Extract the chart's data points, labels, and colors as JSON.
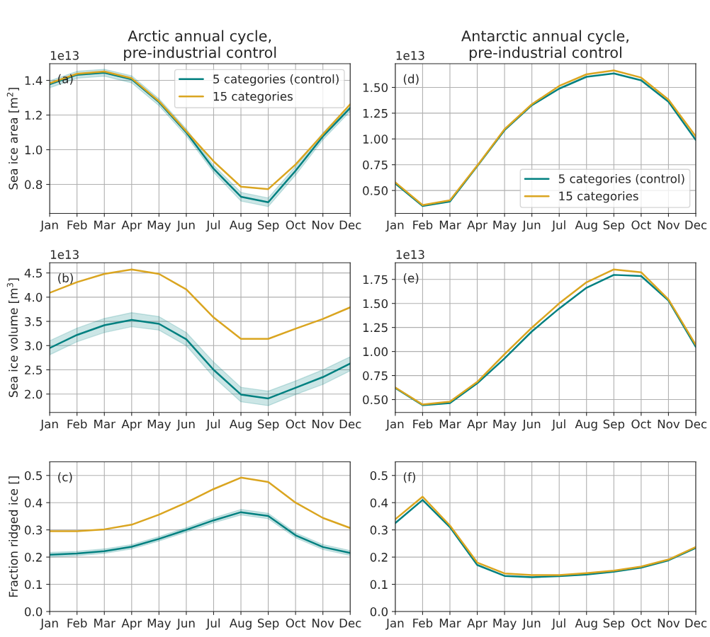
{
  "chart_data": [
    {
      "type": "line",
      "title": "Arctic annual cycle,\npre-industrial control",
      "ylabel": "Sea ice area [m$^{2}$]",
      "annotations": [
        "(a)",
        "1e13"
      ],
      "categories": [
        "Jan",
        "Feb",
        "Mar",
        "Apr",
        "May",
        "Jun",
        "Jul",
        "Aug",
        "Sep",
        "Oct",
        "Nov",
        "Dec"
      ],
      "series": [
        {
          "name": "5 categories (control)",
          "color": "#008080",
          "values": [
            1.377,
            1.432,
            1.444,
            1.406,
            1.274,
            1.1,
            0.89,
            0.729,
            0.697,
            0.879,
            1.077,
            1.241
          ],
          "lower": [
            1.357,
            1.412,
            1.424,
            1.386,
            1.254,
            1.08,
            0.87,
            0.704,
            0.672,
            0.854,
            1.057,
            1.221
          ],
          "upper": [
            1.397,
            1.452,
            1.464,
            1.426,
            1.294,
            1.12,
            0.91,
            0.754,
            0.722,
            0.904,
            1.097,
            1.261
          ]
        },
        {
          "name": "15 categories",
          "color": "#daa520",
          "values": [
            1.384,
            1.438,
            1.451,
            1.412,
            1.28,
            1.107,
            0.933,
            0.787,
            0.773,
            0.915,
            1.089,
            1.262
          ]
        }
      ],
      "ylim": [
        0.633,
        1.496
      ],
      "yticks": [
        0.8,
        {
          "value": 1.0,
          "label": "1.0"
        },
        1.2,
        1.4
      ],
      "grid": true,
      "legend": "top right"
    },
    {
      "type": "line",
      "title": "Antarctic annual cycle,\npre-industrial control",
      "annotations": [
        "(d)",
        "1e13"
      ],
      "categories": [
        "Jan",
        "Feb",
        "Mar",
        "Apr",
        "May",
        "Jun",
        "Jul",
        "Aug",
        "Sep",
        "Oct",
        "Nov",
        "Dec"
      ],
      "series": [
        {
          "name": "5 categories (control)",
          "color": "#008080",
          "values": [
            0.567,
            0.349,
            0.393,
            0.736,
            1.085,
            1.327,
            1.488,
            1.603,
            1.635,
            1.569,
            1.361,
            0.99
          ]
        },
        {
          "name": "15 categories",
          "color": "#daa520",
          "values": [
            0.579,
            0.359,
            0.405,
            0.742,
            1.095,
            1.337,
            1.514,
            1.627,
            1.665,
            1.595,
            1.381,
            1.024
          ]
        }
      ],
      "ylim": [
        0.278,
        1.73
      ],
      "yticks": [
        {
          "value": 0.5,
          "label": "0.50"
        },
        {
          "value": 0.75,
          "label": "0.75"
        },
        {
          "value": 1.0,
          "label": "1.00"
        },
        {
          "value": 1.25,
          "label": "1.25"
        },
        {
          "value": 1.5,
          "label": "1.50"
        }
      ],
      "grid": true,
      "legend": "bottom right"
    },
    {
      "type": "line",
      "ylabel": "Sea ice volume [m$^{3}$]",
      "annotations": [
        "(b)",
        "1e13"
      ],
      "categories": [
        "Jan",
        "Feb",
        "Mar",
        "Apr",
        "May",
        "Jun",
        "Jul",
        "Aug",
        "Sep",
        "Oct",
        "Nov",
        "Dec"
      ],
      "series": [
        {
          "color": "#008080",
          "values": [
            2.95,
            3.22,
            3.42,
            3.53,
            3.45,
            3.13,
            2.5,
            1.99,
            1.91,
            2.13,
            2.35,
            2.63
          ],
          "lower": [
            2.81,
            3.08,
            3.27,
            3.39,
            3.32,
            3.0,
            2.35,
            1.84,
            1.76,
            1.99,
            2.2,
            2.48
          ],
          "upper": [
            3.1,
            3.36,
            3.56,
            3.68,
            3.6,
            3.27,
            2.66,
            2.14,
            2.06,
            2.27,
            2.5,
            2.77
          ]
        },
        {
          "color": "#daa520",
          "values": [
            4.09,
            4.31,
            4.48,
            4.57,
            4.48,
            4.16,
            3.58,
            3.14,
            3.14,
            3.35,
            3.55,
            3.79
          ]
        }
      ],
      "ylim": [
        1.62,
        4.71
      ],
      "yticks": [
        {
          "value": 2.0,
          "label": "2.0"
        },
        2.5,
        {
          "value": 3.0,
          "label": "3.0"
        },
        3.5,
        {
          "value": 4.0,
          "label": "4.0"
        },
        4.5
      ],
      "grid": true
    },
    {
      "type": "line",
      "annotations": [
        "(e)",
        "1e13"
      ],
      "categories": [
        "Jan",
        "Feb",
        "Mar",
        "Apr",
        "May",
        "Jun",
        "Jul",
        "Aug",
        "Sep",
        "Oct",
        "Nov",
        "Dec"
      ],
      "series": [
        {
          "color": "#008080",
          "values": [
            0.621,
            0.442,
            0.463,
            0.669,
            0.928,
            1.209,
            1.447,
            1.663,
            1.797,
            1.785,
            1.53,
            1.048
          ]
        },
        {
          "color": "#daa520",
          "values": [
            0.625,
            0.448,
            0.478,
            0.684,
            0.972,
            1.248,
            1.501,
            1.72,
            1.854,
            1.824,
            1.541,
            1.069
          ]
        }
      ],
      "ylim": [
        0.366,
        1.923
      ],
      "yticks": [
        {
          "value": 0.5,
          "label": "0.50"
        },
        {
          "value": 0.75,
          "label": "0.75"
        },
        {
          "value": 1.0,
          "label": "1.00"
        },
        {
          "value": 1.25,
          "label": "1.25"
        },
        {
          "value": 1.5,
          "label": "1.50"
        },
        {
          "value": 1.75,
          "label": "1.75"
        }
      ],
      "grid": true
    },
    {
      "type": "line",
      "ylabel": "Fraction ridged ice []",
      "annotations": [
        "(c)"
      ],
      "categories": [
        "Jan",
        "Feb",
        "Mar",
        "Apr",
        "May",
        "Jun",
        "Jul",
        "Aug",
        "Sep",
        "Oct",
        "Nov",
        "Dec"
      ],
      "series": [
        {
          "color": "#008080",
          "values": [
            0.209,
            0.213,
            0.222,
            0.238,
            0.267,
            0.3,
            0.335,
            0.365,
            0.351,
            0.28,
            0.237,
            0.215
          ],
          "lower": [
            0.201,
            0.205,
            0.214,
            0.23,
            0.259,
            0.292,
            0.326,
            0.355,
            0.341,
            0.271,
            0.228,
            0.206
          ],
          "upper": [
            0.217,
            0.221,
            0.23,
            0.246,
            0.275,
            0.308,
            0.344,
            0.375,
            0.361,
            0.289,
            0.246,
            0.224
          ]
        },
        {
          "color": "#daa520",
          "values": [
            0.295,
            0.295,
            0.302,
            0.319,
            0.356,
            0.4,
            0.45,
            0.492,
            0.476,
            0.4,
            0.344,
            0.307
          ]
        }
      ],
      "ylim": [
        0,
        0.55
      ],
      "yticks": [
        {
          "value": 0,
          "label": "0.0"
        },
        0.1,
        0.2,
        0.3,
        0.4,
        0.5
      ],
      "grid": true
    },
    {
      "type": "line",
      "annotations": [
        "(f)"
      ],
      "categories": [
        "Jan",
        "Feb",
        "Mar",
        "Apr",
        "May",
        "Jun",
        "Jul",
        "Aug",
        "Sep",
        "Oct",
        "Nov",
        "Dec"
      ],
      "series": [
        {
          "color": "#008080",
          "values": [
            0.325,
            0.41,
            0.31,
            0.171,
            0.131,
            0.126,
            0.13,
            0.136,
            0.146,
            0.161,
            0.188,
            0.234
          ]
        },
        {
          "color": "#daa520",
          "values": [
            0.339,
            0.422,
            0.316,
            0.18,
            0.14,
            0.134,
            0.134,
            0.141,
            0.15,
            0.165,
            0.191,
            0.237
          ]
        }
      ],
      "ylim": [
        0,
        0.55
      ],
      "yticks": [
        {
          "value": 0,
          "label": "0.0"
        },
        0.1,
        0.2,
        0.3,
        0.4,
        0.5
      ],
      "grid": true
    }
  ]
}
